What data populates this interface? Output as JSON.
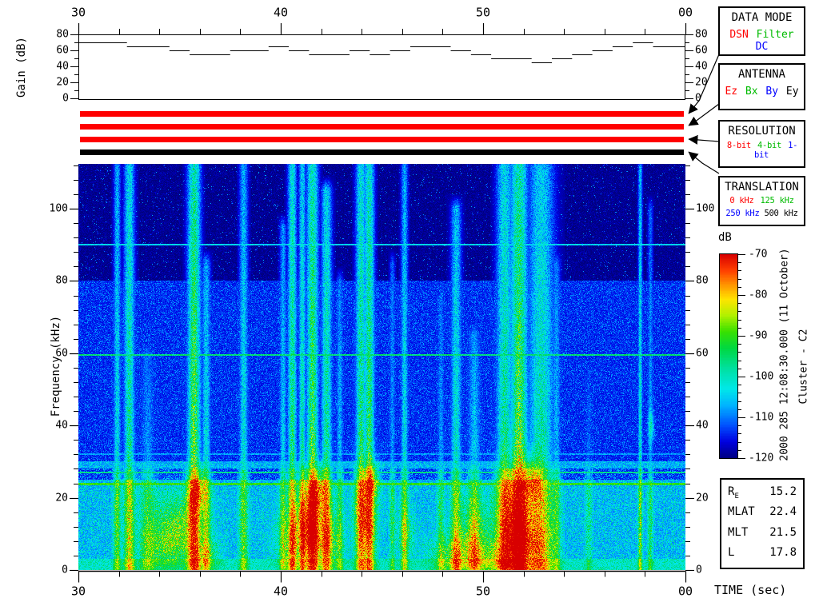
{
  "time_axis": {
    "label": "TIME (sec)",
    "tick_labels": [
      "30",
      "40",
      "50",
      "00"
    ],
    "tick_values": [
      30,
      40,
      50,
      60
    ],
    "minor_step_sec": 2,
    "range": [
      30,
      60
    ]
  },
  "status_bars": [
    {
      "name": "data-mode-bar",
      "color": "#ff0000"
    },
    {
      "name": "antenna-bar",
      "color": "#ff0000"
    },
    {
      "name": "resolution-bar",
      "color": "#ff0000"
    },
    {
      "name": "translation-bar",
      "color": "#000000"
    }
  ],
  "legend_boxes": [
    {
      "title": "DATA MODE",
      "options": [
        {
          "text": "DSN",
          "color": "#ff0000"
        },
        {
          "text": "Filter",
          "color": "#00bb00"
        },
        {
          "text": "DC",
          "color": "#0000ff"
        }
      ]
    },
    {
      "title": "ANTENNA",
      "options": [
        {
          "text": "Ez",
          "color": "#ff0000"
        },
        {
          "text": "Bx",
          "color": "#00bb00"
        },
        {
          "text": "By",
          "color": "#0000ff"
        },
        {
          "text": "Ey",
          "color": "#000000"
        }
      ]
    },
    {
      "title": "RESOLUTION",
      "options": [
        {
          "text": "8-bit",
          "color": "#ff0000"
        },
        {
          "text": "4-bit",
          "color": "#00bb00"
        },
        {
          "text": "1-bit",
          "color": "#0000ff"
        }
      ]
    },
    {
      "title": "TRANSLATION",
      "rows": [
        [
          {
            "text": "0 kHz",
            "color": "#ff0000"
          },
          {
            "text": "125 kHz",
            "color": "#00bb00"
          }
        ],
        [
          {
            "text": "250 kHz",
            "color": "#0000ff"
          },
          {
            "text": "500 kHz",
            "color": "#000000"
          }
        ]
      ]
    }
  ],
  "colorbar": {
    "label": "dB",
    "tick_labels": [
      "-70",
      "-80",
      "-90",
      "-100",
      "-110",
      "-120"
    ],
    "tick_values": [
      -70,
      -80,
      -90,
      -100,
      -110,
      -120
    ],
    "minor_step_db": 2,
    "range": [
      -120,
      -70
    ]
  },
  "annotations": {
    "timestamp": "2000 285 12:08:30.000 (11 October)",
    "spacecraft": "Cluster - C2"
  },
  "info_box": {
    "rows": [
      {
        "label": "R",
        "sublabel": "E",
        "value": "15.2"
      },
      {
        "label": "MLAT",
        "sublabel": "",
        "value": "22.4"
      },
      {
        "label": "MLT",
        "sublabel": "",
        "value": "21.5"
      },
      {
        "label": "L",
        "sublabel": "",
        "value": "17.8"
      }
    ]
  },
  "chart_data": [
    {
      "type": "line",
      "subtype": "step",
      "title": "Receiver gain vs time",
      "xlabel": "TIME (sec)",
      "ylabel": "Gain (dB)",
      "x_range": [
        30,
        60
      ],
      "x_tick_labels": [
        "30",
        "40",
        "50",
        "00"
      ],
      "x_tick_values": [
        30,
        40,
        50,
        60
      ],
      "x_minor_step": 2,
      "y_range": [
        0,
        80
      ],
      "y_tick_labels": [
        "80",
        "60",
        "40",
        "20",
        "0"
      ],
      "y_tick_values": [
        80,
        60,
        40,
        20,
        0
      ],
      "y_minor_values": [
        70,
        50,
        30,
        10
      ],
      "steps": [
        [
          30,
          70
        ],
        [
          32.4,
          65
        ],
        [
          34.5,
          60
        ],
        [
          35.5,
          55
        ],
        [
          37.5,
          60
        ],
        [
          39.4,
          65
        ],
        [
          40.4,
          60
        ],
        [
          41.4,
          55
        ],
        [
          43.4,
          60
        ],
        [
          44.4,
          55
        ],
        [
          45.4,
          60
        ],
        [
          46.4,
          65
        ],
        [
          48.4,
          60
        ],
        [
          49.4,
          55
        ],
        [
          50.4,
          50
        ],
        [
          52.4,
          45
        ],
        [
          53.4,
          50
        ],
        [
          54.4,
          55
        ],
        [
          55.4,
          60
        ],
        [
          56.4,
          65
        ],
        [
          57.4,
          70
        ],
        [
          58.4,
          65
        ],
        [
          60,
          65
        ]
      ]
    },
    {
      "type": "heatmap",
      "title": "Cluster WBD wideband spectrogram",
      "xlabel": "TIME (sec)",
      "ylabel": "Frequency (kHz)",
      "x_range": [
        30,
        60
      ],
      "x_tick_labels": [
        "30",
        "40",
        "50",
        "00"
      ],
      "x_tick_values": [
        30,
        40,
        50,
        60
      ],
      "x_minor_step": 2,
      "y_range": [
        0,
        112.4
      ],
      "y_tick_labels": [
        "100",
        "80",
        "60",
        "40",
        "20",
        "0"
      ],
      "y_tick_values": [
        100,
        80,
        60,
        40,
        20,
        0
      ],
      "y_minor_step": 4,
      "color_range_db": [
        -120,
        -70
      ],
      "colorbar_label": "dB",
      "colormap_stops": [
        [
          -120,
          "#000080"
        ],
        [
          -116,
          "#0000e0"
        ],
        [
          -112,
          "#0050ff"
        ],
        [
          -107,
          "#00b4ff"
        ],
        [
          -103,
          "#00e8e8"
        ],
        [
          -98,
          "#00e0a0"
        ],
        [
          -93,
          "#00d840"
        ],
        [
          -89,
          "#38e000"
        ],
        [
          -85,
          "#b0f000"
        ],
        [
          -81,
          "#ffe400"
        ],
        [
          -78,
          "#ffa000"
        ],
        [
          -74,
          "#ff4000"
        ],
        [
          -70,
          "#d80000"
        ]
      ],
      "spectral_lines_khz": [
        {
          "f": 90,
          "db": -104,
          "hw": 0.25
        },
        {
          "f": 59.5,
          "db": -96,
          "hw": 0.25
        },
        {
          "f": 32,
          "db": -108,
          "hw": 0.2
        },
        {
          "f": 27,
          "db": -97,
          "hw": 0.25
        },
        {
          "f": 23.8,
          "db": -90,
          "hw": 0.35
        }
      ],
      "noise_bands": [
        {
          "f_min": 80,
          "f_max": 113,
          "base_db": -121,
          "speckle": 0.06,
          "spread": 14
        },
        {
          "f_min": 30,
          "f_max": 80,
          "base_db": -116,
          "speckle": 0.5,
          "spread": 9
        },
        {
          "f_min": 25,
          "f_max": 30,
          "base_db": -110,
          "speckle": 0.7,
          "spread": 11
        },
        {
          "f_min": 3,
          "f_max": 25,
          "base_db": -104,
          "speckle": 0.8,
          "spread": 13
        },
        {
          "f_min": 0,
          "f_max": 3,
          "base_db": -98,
          "speckle": 0.9,
          "spread": 9
        }
      ],
      "burst_events": [
        {
          "t": 31.9,
          "w": 0.12,
          "amp": 9,
          "topf": 112
        },
        {
          "t": 32.5,
          "w": 0.18,
          "amp": 12,
          "topf": 112
        },
        {
          "t": 33.4,
          "w": 0.25,
          "amp": 6,
          "topf": 60
        },
        {
          "t": 35.7,
          "w": 0.22,
          "amp": 16,
          "topf": 112
        },
        {
          "t": 36.3,
          "w": 0.15,
          "amp": 9,
          "topf": 85
        },
        {
          "t": 38.15,
          "w": 0.15,
          "amp": 9,
          "topf": 112
        },
        {
          "t": 40.1,
          "w": 0.12,
          "amp": 8,
          "topf": 95
        },
        {
          "t": 40.55,
          "w": 0.15,
          "amp": 13,
          "topf": 112
        },
        {
          "t": 41.05,
          "w": 0.12,
          "amp": 11,
          "topf": 112
        },
        {
          "t": 41.55,
          "w": 0.2,
          "amp": 15,
          "topf": 112
        },
        {
          "t": 42.25,
          "w": 0.18,
          "amp": 12,
          "topf": 105
        },
        {
          "t": 42.9,
          "w": 0.12,
          "amp": 7,
          "topf": 80
        },
        {
          "t": 43.95,
          "w": 0.18,
          "amp": 13,
          "topf": 112
        },
        {
          "t": 44.35,
          "w": 0.18,
          "amp": 14,
          "topf": 112
        },
        {
          "t": 45.5,
          "w": 0.1,
          "amp": 6,
          "topf": 85
        },
        {
          "t": 46.1,
          "w": 0.12,
          "amp": 9,
          "topf": 112
        },
        {
          "t": 47.9,
          "w": 0.12,
          "amp": 6,
          "topf": 75
        },
        {
          "t": 48.65,
          "w": 0.18,
          "amp": 10,
          "topf": 100
        },
        {
          "t": 49.55,
          "w": 0.22,
          "amp": 8,
          "topf": 65
        },
        {
          "t": 51.05,
          "w": 0.28,
          "amp": 12,
          "topf": 112
        },
        {
          "t": 51.75,
          "w": 0.3,
          "amp": 16,
          "topf": 112
        },
        {
          "t": 52.85,
          "w": 0.45,
          "amp": 11,
          "topf": 112
        },
        {
          "t": 53.6,
          "w": 0.15,
          "amp": 7,
          "topf": 85
        },
        {
          "t": 55.2,
          "w": 0.12,
          "amp": 4,
          "topf": 55
        },
        {
          "t": 57.75,
          "w": 0.07,
          "amp": 10,
          "topf": 112
        },
        {
          "t": 58.25,
          "w": 0.09,
          "amp": 6,
          "topf": 100
        }
      ],
      "hot_spots": [
        {
          "t": 34.3,
          "f": 6,
          "wt": 0.8,
          "wf": 4,
          "amp": 11
        },
        {
          "t": 34.9,
          "f": 13,
          "wt": 0.9,
          "wf": 6,
          "amp": 14
        },
        {
          "t": 35.9,
          "f": 22,
          "wt": 0.35,
          "wf": 4,
          "amp": 14
        },
        {
          "t": 36.3,
          "f": 4,
          "wt": 0.5,
          "wf": 3,
          "amp": 10
        },
        {
          "t": 40.8,
          "f": 8,
          "wt": 0.7,
          "wf": 6,
          "amp": 12
        },
        {
          "t": 41.5,
          "f": 15,
          "wt": 0.5,
          "wf": 8,
          "amp": 16
        },
        {
          "t": 41.9,
          "f": 22,
          "wt": 0.3,
          "wf": 4,
          "amp": 13
        },
        {
          "t": 42.3,
          "f": 8,
          "wt": 0.5,
          "wf": 5,
          "amp": 12
        },
        {
          "t": 44.2,
          "f": 16,
          "wt": 0.4,
          "wf": 9,
          "amp": 15
        },
        {
          "t": 44.6,
          "f": 25,
          "wt": 0.25,
          "wf": 3,
          "amp": 12
        },
        {
          "t": 46.2,
          "f": 10,
          "wt": 0.3,
          "wf": 5,
          "amp": 8
        },
        {
          "t": 48.7,
          "f": 4,
          "wt": 0.9,
          "wf": 4,
          "amp": 13
        },
        {
          "t": 49.6,
          "f": 11,
          "wt": 0.6,
          "wf": 6,
          "amp": 10
        },
        {
          "t": 50.3,
          "f": 3,
          "wt": 0.7,
          "wf": 3,
          "amp": 10
        },
        {
          "t": 51.7,
          "f": 18,
          "wt": 0.7,
          "wf": 9,
          "amp": 17
        },
        {
          "t": 51.95,
          "f": 6,
          "wt": 0.8,
          "wf": 6,
          "amp": 17
        },
        {
          "t": 52.45,
          "f": 25,
          "wt": 0.35,
          "wf": 4,
          "amp": 12
        },
        {
          "t": 58.3,
          "f": 40,
          "wt": 0.1,
          "wf": 3,
          "amp": 10
        }
      ],
      "seed": 20
    }
  ]
}
